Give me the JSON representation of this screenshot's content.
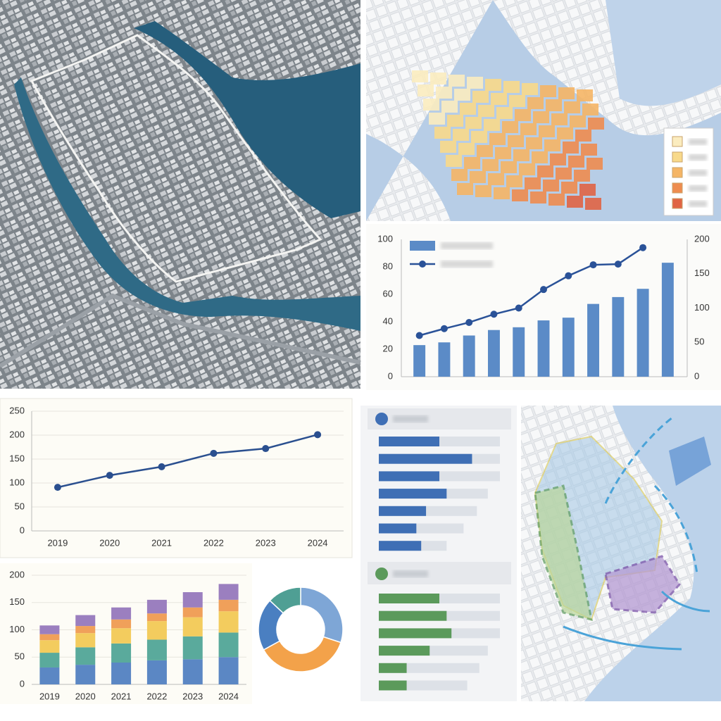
{
  "chart_data": [
    {
      "type": "combo",
      "series": [
        {
          "color": "#5b8bc7",
          "values": [
            23,
            25,
            30,
            34,
            36,
            41,
            43,
            53,
            58,
            64,
            83
          ]
        },
        {
          "color": "#2a5298",
          "axis": "y2",
          "values": [
            60,
            70,
            79,
            91,
            100,
            127,
            147,
            163,
            164,
            188,
            null
          ]
        }
      ],
      "ylim": [
        0,
        100
      ],
      "yticks": [
        0,
        20,
        40,
        60,
        80,
        100
      ],
      "y2lim": [
        0,
        200
      ],
      "y2ticks": [
        0,
        50,
        100,
        150,
        200
      ]
    },
    {
      "type": "line",
      "color": "#2a4f8f",
      "categories": [
        "2019",
        "2020",
        "2021",
        "2022",
        "2023",
        "2024"
      ],
      "values": [
        91,
        116,
        134,
        162,
        172,
        201
      ],
      "ylim": [
        0,
        250
      ],
      "yticks": [
        0,
        50,
        100,
        150,
        200,
        250
      ],
      "grid": true
    },
    {
      "type": "stacked_bar",
      "categories": [
        "2019",
        "2020",
        "2021",
        "2022",
        "2023",
        "2024"
      ],
      "series": [
        {
          "color": "#5b87c4",
          "values": [
            31,
            36,
            40,
            44,
            46,
            50
          ]
        },
        {
          "color": "#5aaa9c",
          "values": [
            27,
            32,
            35,
            38,
            42,
            45
          ]
        },
        {
          "color": "#f3cc5e",
          "values": [
            23,
            26,
            28,
            34,
            35,
            39
          ]
        },
        {
          "color": "#f0a05a",
          "values": [
            11,
            13,
            16,
            14,
            18,
            21
          ]
        },
        {
          "color": "#9b7fbf",
          "values": [
            16,
            20,
            22,
            25,
            28,
            29
          ]
        }
      ],
      "ylim": [
        0,
        200
      ],
      "yticks": [
        0,
        50,
        100,
        150,
        200
      ],
      "grid": true
    },
    {
      "type": "donut",
      "values": [
        30,
        37,
        20,
        13
      ],
      "colors": [
        "#7ea6d6",
        "#f3a24a",
        "#4a7fc1",
        "#4f9f94"
      ]
    },
    {
      "type": "hbar",
      "xlim": [
        0,
        100
      ],
      "series": [
        {
          "color": "#dde1e7",
          "values": [
            100,
            100,
            100,
            90,
            81,
            70,
            56
          ]
        },
        {
          "color": "#3f6fb5",
          "values": [
            50,
            77,
            50,
            56,
            39,
            31,
            35
          ]
        }
      ]
    },
    {
      "type": "hbar",
      "xlim": [
        0,
        100
      ],
      "series": [
        {
          "color": "#dde1e7",
          "values": [
            100,
            100,
            100,
            90,
            83,
            73
          ]
        },
        {
          "color": "#5b9a5b",
          "values": [
            50,
            56,
            60,
            42,
            23,
            23
          ]
        }
      ]
    }
  ]
}
